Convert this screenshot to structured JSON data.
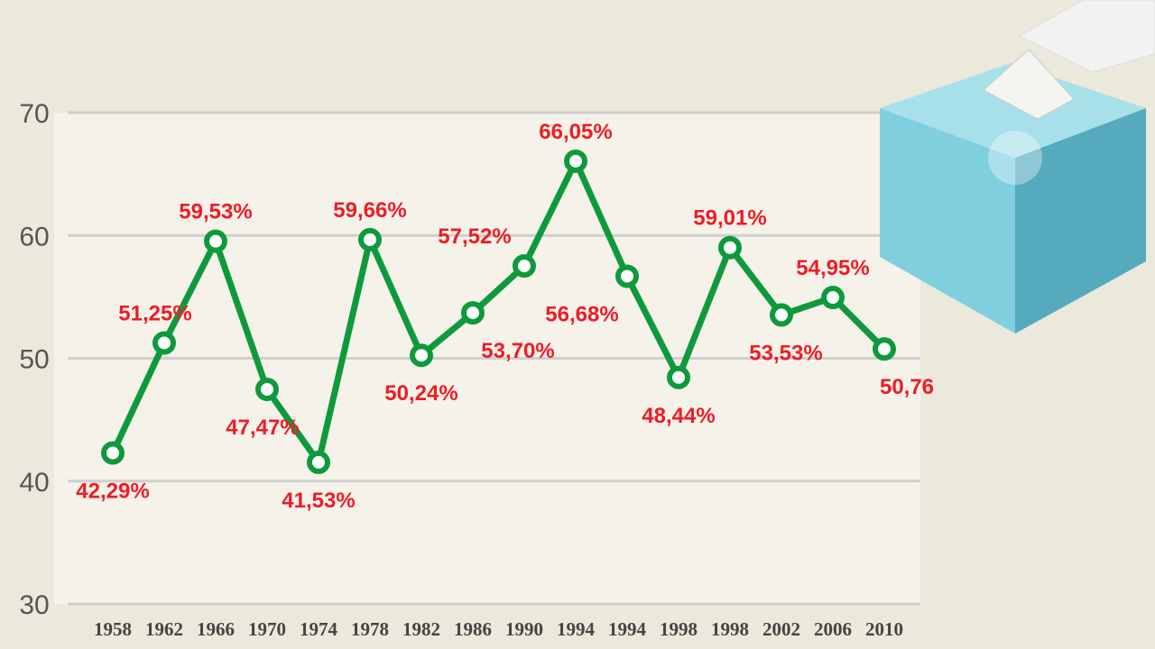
{
  "chart_data": {
    "type": "line",
    "title": "",
    "xlabel": "",
    "ylabel": "",
    "ylim": [
      30,
      70
    ],
    "yticks": [
      "30",
      "40",
      "50",
      "60",
      "70"
    ],
    "categories": [
      "1958",
      "1962",
      "1966",
      "1970",
      "1974",
      "1978",
      "1982",
      "1986",
      "1990",
      "1994",
      "1994",
      "1998",
      "1998",
      "2002",
      "2006",
      "2010"
    ],
    "values": [
      42.29,
      51.25,
      59.53,
      47.47,
      41.53,
      59.66,
      50.24,
      53.7,
      57.52,
      66.05,
      56.68,
      48.44,
      59.01,
      53.53,
      54.95,
      50.76
    ],
    "labels": [
      "42,29%",
      "51,25%",
      "59,53%",
      "47,47%",
      "41,53%",
      "59,66%",
      "50,24%",
      "53,70%",
      "57,52%",
      "66,05%",
      "56,68%",
      "48,44%",
      "59,01%",
      "53,53%",
      "54,95%",
      "50,76"
    ],
    "grid": true,
    "colors": {
      "line": "#0e9a3c",
      "labels": "#ee1c25",
      "plot_bg": "#f5f2ea",
      "page_bg": "#ebe8dc"
    }
  },
  "illustration": {
    "icon": "ballot-box-icon"
  }
}
